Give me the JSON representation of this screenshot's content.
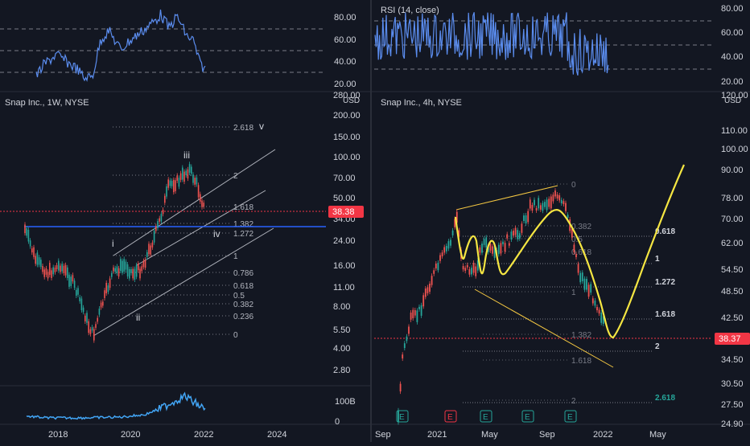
{
  "colors": {
    "background": "#131722",
    "grid": "#2a2e39",
    "text": "#d1d4dc",
    "dim": "#787b86",
    "rsi": "#5b8def",
    "candle_up": "#26a69a",
    "candle_down": "#ef5350",
    "fib": "#787b86",
    "channel": "#d1d4dc",
    "yellow": "#f5e642",
    "support": "#2962ff",
    "price_badge": "#f23645",
    "earnings_e": "#26a69a",
    "earnings_e_red": "#f23645"
  },
  "left_panel": {
    "title": "Snap Inc., 1W, NYSE",
    "currency": "USD",
    "price_badge": "38.38",
    "rsi_ticks": [
      "80.00",
      "60.00",
      "40.00",
      "20.00"
    ],
    "price_ticks": [
      "280.00",
      "200.00",
      "150.00",
      "100.00",
      "70.00",
      "50.00",
      "34.00",
      "24.00",
      "16.00",
      "11.00",
      "8.00",
      "5.50",
      "4.00",
      "2.80"
    ],
    "volume_ticks": [
      "100B",
      "0"
    ],
    "time_ticks": [
      "2018",
      "2020",
      "2022",
      "2024"
    ],
    "fib_labels": [
      "2.618",
      "2",
      "1.618",
      "1.382",
      "1.272",
      "1",
      "0.786",
      "0.618",
      "0.5",
      "0.382",
      "0.236",
      "0"
    ],
    "wave_labels": [
      "i",
      "ii",
      "iii",
      "iv",
      "v"
    ]
  },
  "right_panel": {
    "title": "Snap Inc., 4h, NYSE",
    "rsi_title": "RSI (14, close)",
    "currency": "USD",
    "price_badge": "38.37",
    "rsi_ticks": [
      "80.00",
      "60.00",
      "40.00",
      "20.00"
    ],
    "price_ticks": [
      "120.00",
      "110.00",
      "100.00",
      "90.00",
      "78.00",
      "70.00",
      "62.00",
      "54.50",
      "48.50",
      "42.50",
      "34.50",
      "30.50",
      "27.50",
      "24.90"
    ],
    "time_ticks": [
      "Sep",
      "2021",
      "May",
      "Sep",
      "2022",
      "May"
    ],
    "fib_labels_upper": [
      "0",
      "0.382",
      "0.5",
      "0.618",
      "1",
      "1.382",
      "1.618",
      "2"
    ],
    "fib_labels_lower": [
      "0.618",
      "1",
      "1.272",
      "1.618",
      "2",
      "2.618"
    ],
    "earnings_markers": [
      "E",
      "E",
      "E",
      "E",
      "E"
    ]
  },
  "chart_data": [
    {
      "type": "line",
      "title": "Snap Inc., 1W, NYSE",
      "ylabel": "USD",
      "scale": "log",
      "ylim": [
        2.8,
        280
      ],
      "x": [
        "2017-03",
        "2017-06",
        "2017-09",
        "2017-12",
        "2018-03",
        "2018-06",
        "2018-09",
        "2018-12",
        "2019-03",
        "2019-06",
        "2019-09",
        "2019-12",
        "2020-03",
        "2020-06",
        "2020-09",
        "2020-12",
        "2021-03",
        "2021-06",
        "2021-09",
        "2021-12",
        "2022-01"
      ],
      "series": [
        {
          "values": [
            27,
            16,
            14,
            14,
            18,
            13,
            9,
            5.3,
            11,
            14,
            15,
            16,
            9,
            20,
            26,
            50,
            60,
            72,
            78,
            55,
            38.38
          ]
        }
      ],
      "support_level": 28,
      "price_badge": 38.38
    },
    {
      "type": "line",
      "title": "Snap Inc., 4h, NYSE",
      "ylabel": "USD",
      "scale": "log",
      "ylim": [
        24.9,
        120
      ],
      "x": [
        "2020-09",
        "2020-11",
        "2021-01",
        "2021-03",
        "2021-05",
        "2021-07",
        "2021-09",
        "2021-11",
        "2022-01"
      ],
      "series": [
        {
          "values": [
            25,
            33,
            55,
            68,
            52,
            72,
            80,
            52,
            38.37
          ]
        }
      ],
      "price_badge": 38.37
    },
    {
      "type": "line",
      "title": "RSI (14, close)",
      "ylim": [
        20,
        80
      ],
      "reference_levels": [
        30,
        50,
        70
      ]
    }
  ]
}
